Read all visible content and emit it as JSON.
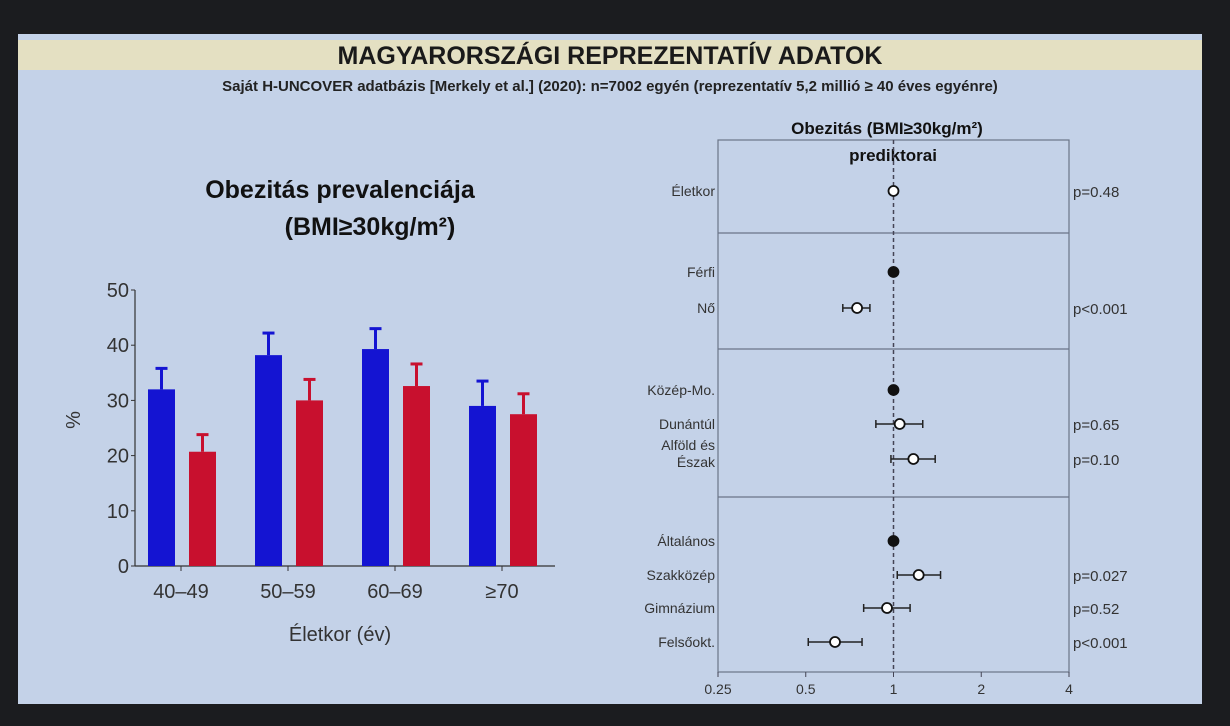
{
  "slide": {
    "title": "MAGYARORSZÁGI REPREZENTATÍV ADATOK",
    "subtitle": "Saját H-UNCOVER adatbázis [Merkely et al.] (2020): n=7002 egyén (reprezentatív 5,2 millió ≥ 40 éves egyénre)"
  },
  "chart_data": [
    {
      "type": "bar",
      "title": "Obezitás prevalenciája",
      "subtitle": "(BMI≥30kg/m²)",
      "xlabel": "Életkor (év)",
      "ylabel": "%",
      "ylim": [
        0,
        50
      ],
      "yticks": [
        "0",
        "10",
        "20",
        "30",
        "40",
        "50"
      ],
      "categories": [
        "40–49",
        "50–59",
        "60–69",
        "≥70"
      ],
      "series": [
        {
          "name": "blue",
          "color": "#1414d2",
          "values": [
            32,
            38.2,
            39.3,
            29
          ],
          "error_upper": [
            35.8,
            42.2,
            43,
            33.5
          ]
        },
        {
          "name": "red",
          "color": "#c8102e",
          "values": [
            20.7,
            30,
            32.6,
            27.5
          ],
          "error_upper": [
            23.8,
            33.8,
            36.6,
            31.2
          ]
        }
      ]
    },
    {
      "type": "scatter",
      "title": "Obezitás (BMI≥30kg/m²)",
      "subtitle": "prediktorai",
      "xscale": "log2",
      "xlim": [
        0.25,
        4
      ],
      "xticks": [
        "0.25",
        "0.5",
        "1",
        "2",
        "4"
      ],
      "reference": 1,
      "groups": [
        {
          "rows": [
            {
              "label": "Életkor",
              "value": 1.0,
              "ci": [
                1.0,
                1.0
              ],
              "ref": false,
              "p": "p=0.48"
            }
          ]
        },
        {
          "rows": [
            {
              "label": "Férfi",
              "value": 1,
              "ci": null,
              "ref": true,
              "p": ""
            },
            {
              "label": "Nő",
              "value": 0.75,
              "ci": [
                0.67,
                0.83
              ],
              "ref": false,
              "p": "p<0.001"
            }
          ]
        },
        {
          "rows": [
            {
              "label": "Közép-Mo.",
              "value": 1,
              "ci": null,
              "ref": true,
              "p": ""
            },
            {
              "label": "Dunántúl",
              "value": 1.05,
              "ci": [
                0.87,
                1.26
              ],
              "ref": false,
              "p": "p=0.65"
            },
            {
              "label": "Alföld és Észak",
              "value": 1.17,
              "ci": [
                0.98,
                1.39
              ],
              "ref": false,
              "p": "p=0.10"
            }
          ]
        },
        {
          "rows": [
            {
              "label": "Általános",
              "value": 1,
              "ci": null,
              "ref": true,
              "p": ""
            },
            {
              "label": "Szakközép",
              "value": 1.22,
              "ci": [
                1.03,
                1.45
              ],
              "ref": false,
              "p": "p=0.027"
            },
            {
              "label": "Gimnázium",
              "value": 0.95,
              "ci": [
                0.79,
                1.14
              ],
              "ref": false,
              "p": "p=0.52"
            },
            {
              "label": "Felsőokt.",
              "value": 0.63,
              "ci": [
                0.51,
                0.78
              ],
              "ref": false,
              "p": "p<0.001"
            }
          ]
        }
      ]
    }
  ]
}
